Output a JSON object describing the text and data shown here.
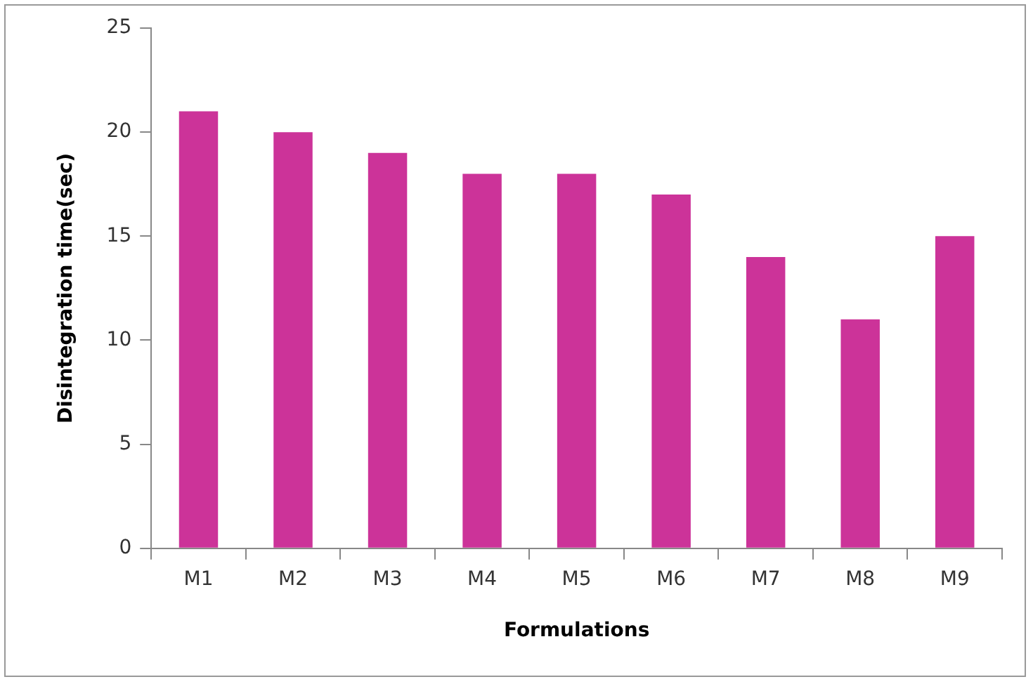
{
  "chart_data": {
    "type": "bar",
    "xlabel": "Formulations",
    "ylabel": "Disintegration time(sec)",
    "categories": [
      "M1",
      "M2",
      "M3",
      "M4",
      "M5",
      "M6",
      "M7",
      "M8",
      "M9"
    ],
    "values": [
      21,
      20,
      19,
      18,
      18,
      17,
      14,
      11,
      15
    ],
    "color": "#cc3399",
    "ylim": [
      0,
      25
    ],
    "yticks": [
      0,
      5,
      10,
      15,
      20,
      25
    ],
    "grid": false,
    "legend": false
  }
}
